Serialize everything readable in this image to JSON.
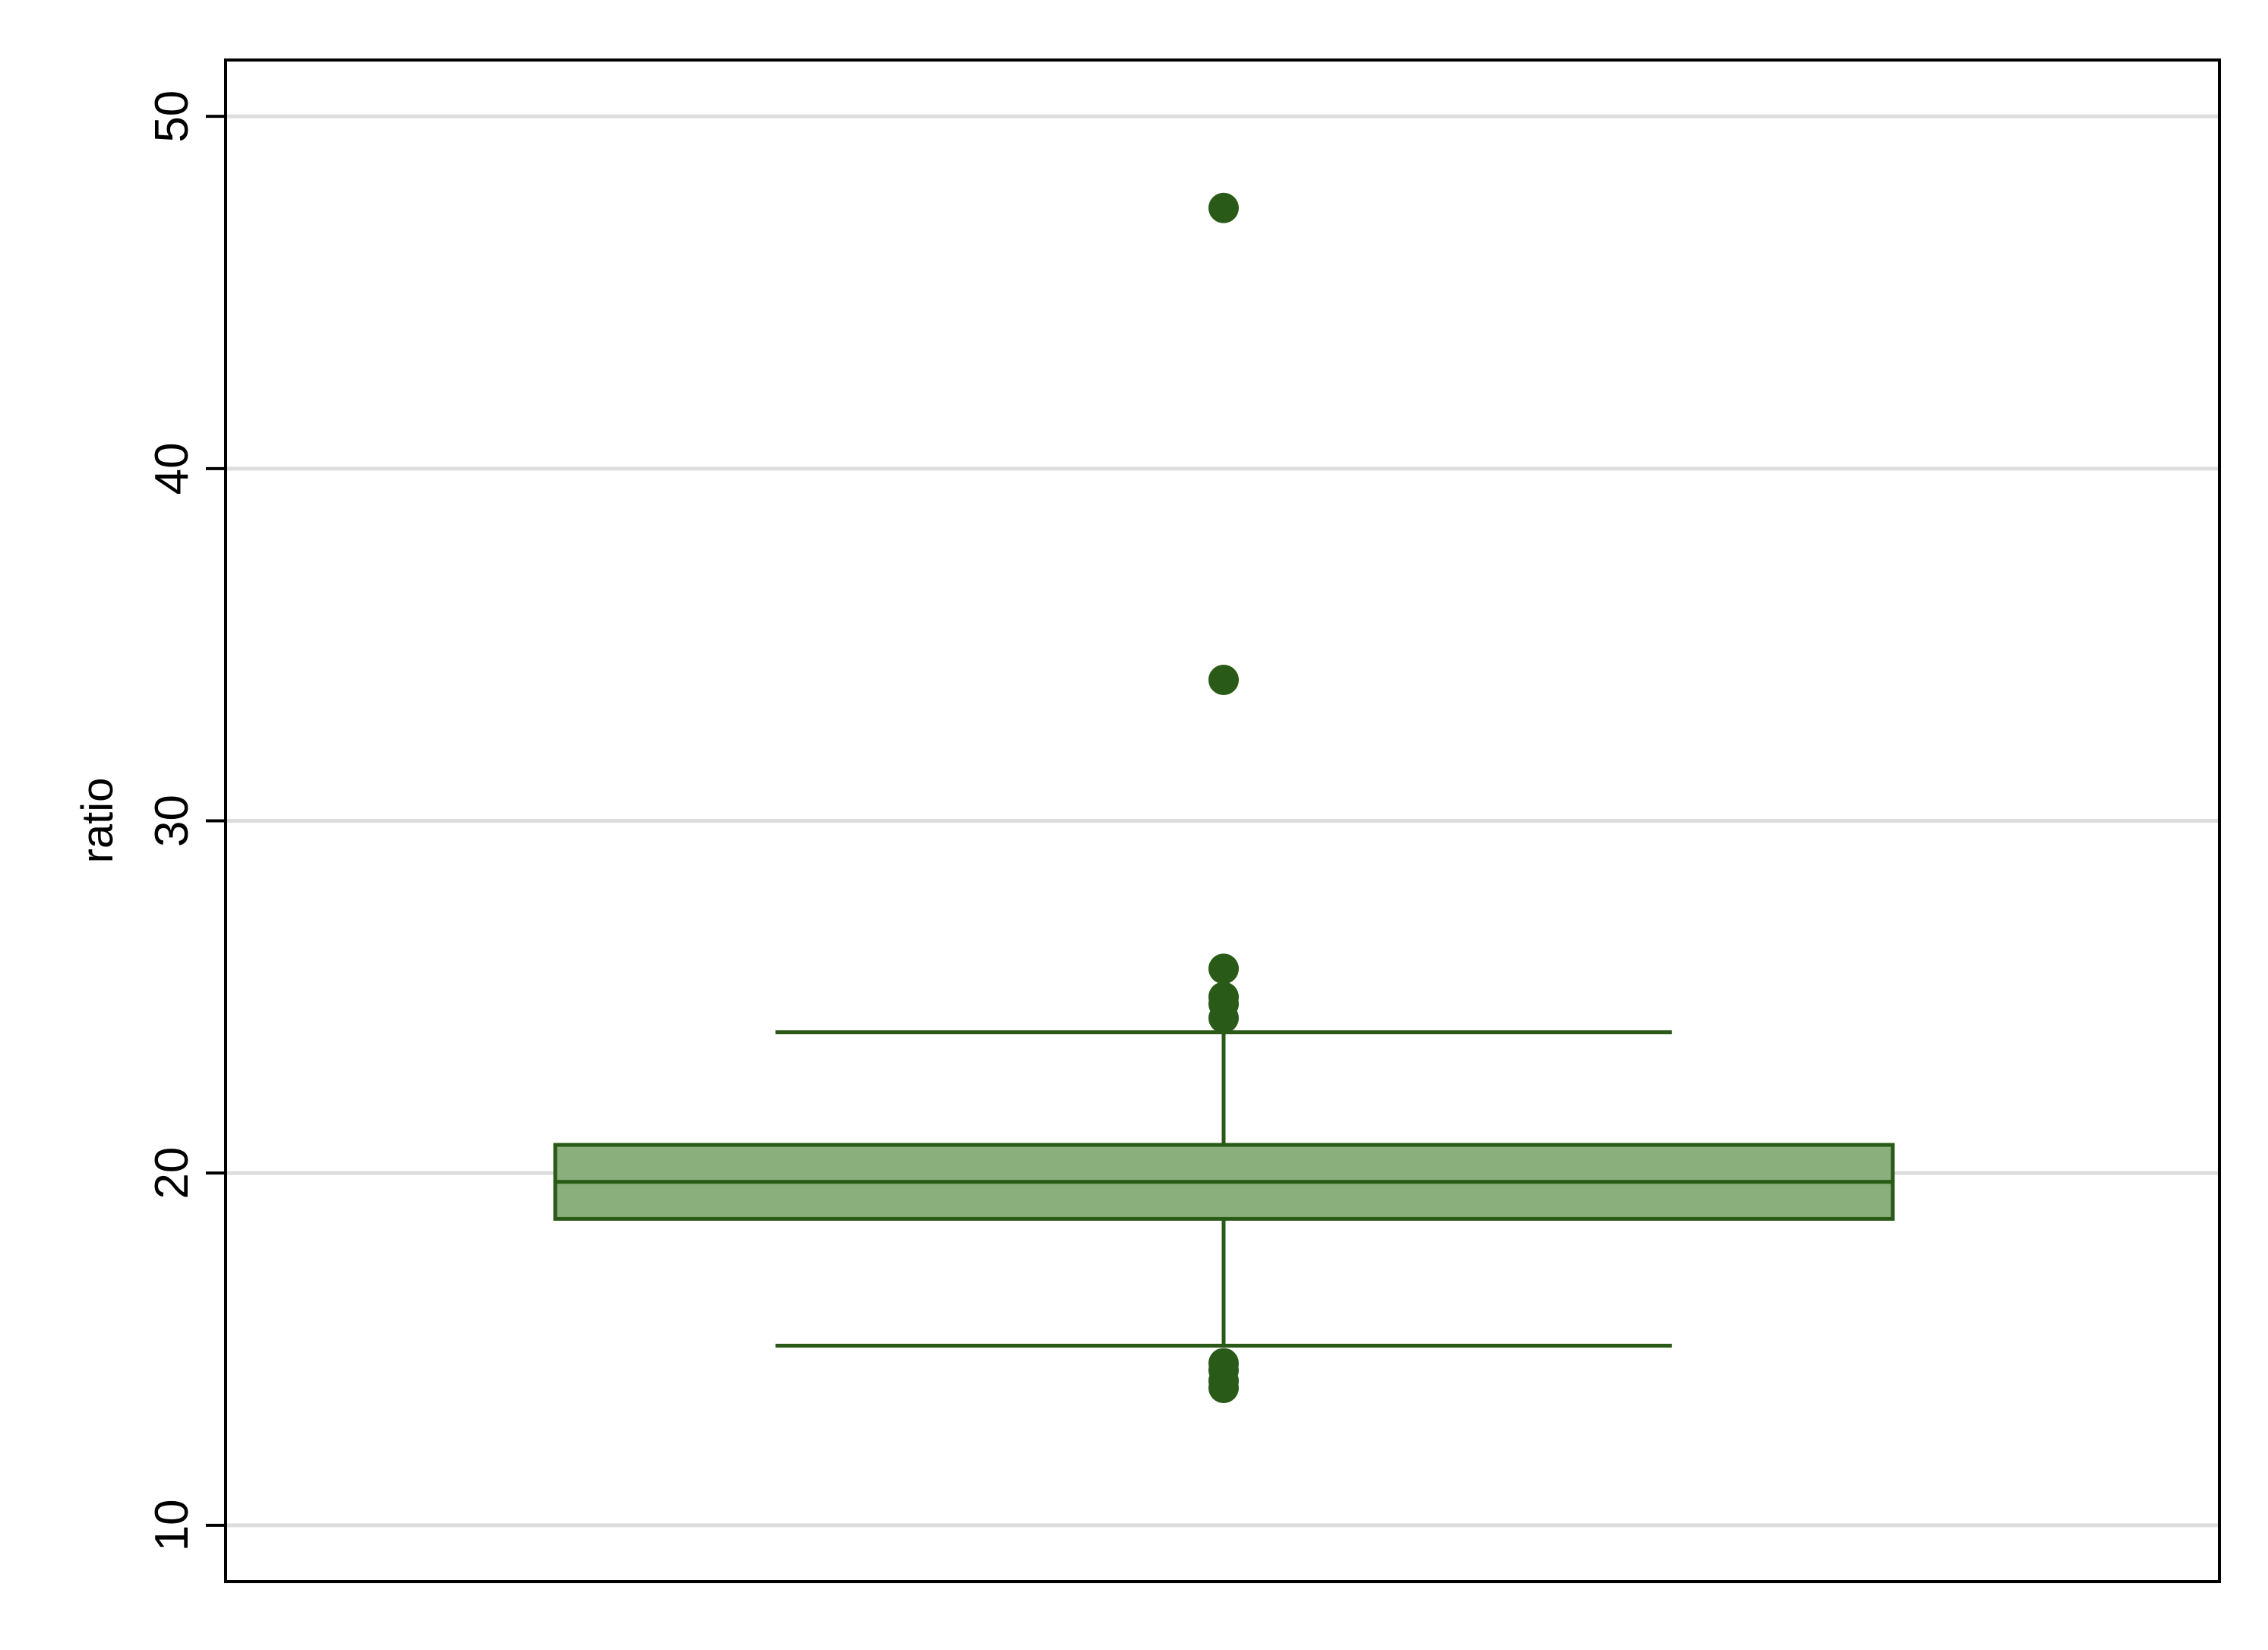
{
  "chart_data": {
    "type": "box",
    "ylabel": "ratio",
    "xlabel": "",
    "title": "",
    "ylim": [
      8.4,
      51.6
    ],
    "yticks": [
      10,
      20,
      30,
      40,
      50
    ],
    "grid": "horizontal",
    "colors": {
      "box_fill": "#8aaf7c",
      "stroke": "#2a5a17",
      "outlier": "#2a5a17",
      "grid": "#dddddd",
      "frame": "#000000"
    },
    "box": {
      "whisker_low": 15.1,
      "q1": 18.7,
      "median": 19.75,
      "q3": 20.8,
      "whisker_high": 24.0
    },
    "outliers": [
      47.4,
      34.0,
      25.8,
      25.0,
      24.8,
      24.4,
      14.6,
      14.4,
      14.1,
      13.9
    ]
  }
}
